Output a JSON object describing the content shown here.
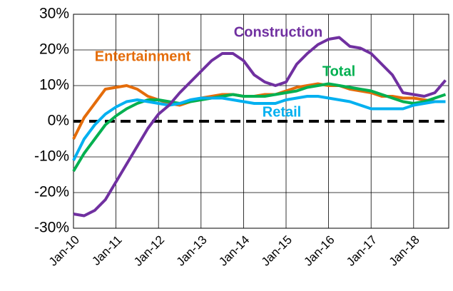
{
  "chart_data": {
    "type": "line",
    "categories": [
      "Jan-10",
      null,
      null,
      null,
      "Jan-11",
      null,
      null,
      null,
      "Jan-12",
      null,
      null,
      null,
      "Jan-13",
      null,
      null,
      null,
      "Jan-14",
      null,
      null,
      null,
      "Jan-15",
      null,
      null,
      null,
      "Jan-16",
      null,
      null,
      null,
      "Jan-17",
      null,
      null,
      null,
      "Jan-18",
      null,
      null,
      null
    ],
    "series": [
      {
        "name": "Entertainment",
        "color": "#E46C0A",
        "values": [
          -5,
          1,
          5,
          9,
          9.5,
          10,
          9,
          7,
          6,
          5,
          4.5,
          5.5,
          6.5,
          7,
          7.5,
          7.5,
          7,
          7,
          7.5,
          7.5,
          8.5,
          9.5,
          10,
          10.5,
          10,
          10,
          9,
          8.5,
          8,
          7,
          7,
          6.5,
          6.5,
          6,
          5.5,
          5.5
        ]
      },
      {
        "name": "Total",
        "color": "#00B050",
        "values": [
          -14,
          -9,
          -5,
          -1,
          1.5,
          3.5,
          5,
          6,
          6,
          5.5,
          5,
          5.5,
          6,
          6.5,
          7,
          7.5,
          7,
          7,
          7,
          7.5,
          8,
          8.5,
          9.5,
          10,
          10.5,
          10,
          9.5,
          9,
          8.5,
          7.5,
          6.5,
          5.5,
          5,
          5.5,
          6.5,
          7.5
        ]
      },
      {
        "name": "Retail",
        "color": "#00B0F0",
        "values": [
          -11,
          -5,
          -1,
          2,
          4,
          5.5,
          6,
          5.5,
          5,
          4.5,
          5,
          6,
          6.5,
          6.5,
          6.5,
          6,
          5.5,
          5,
          5,
          5,
          6,
          6.5,
          7,
          7,
          6.5,
          6,
          5.5,
          4.5,
          3.5,
          3.5,
          3.5,
          3.5,
          4.5,
          5,
          5.5,
          5.5
        ]
      },
      {
        "name": "Construction",
        "color": "#7030A0",
        "values": [
          -26,
          -26.5,
          -25,
          -22,
          -17,
          -12,
          -7,
          -2,
          2,
          4.5,
          8,
          11,
          14,
          17,
          19,
          19,
          17,
          13,
          11,
          10,
          11,
          16,
          19,
          21.5,
          23,
          23.5,
          21,
          20.5,
          19,
          16,
          13,
          8,
          7.5,
          7,
          8,
          11.5
        ]
      }
    ],
    "ylim": [
      -30,
      30
    ],
    "yticks": [
      {
        "value": -30,
        "label": "-30%"
      },
      {
        "value": -20,
        "label": "-20%"
      },
      {
        "value": -10,
        "label": "-10%"
      },
      {
        "value": 0,
        "label": "0%"
      },
      {
        "value": 10,
        "label": "10%"
      },
      {
        "value": 20,
        "label": "20%"
      },
      {
        "value": 30,
        "label": "30%"
      }
    ],
    "grid": true
  }
}
